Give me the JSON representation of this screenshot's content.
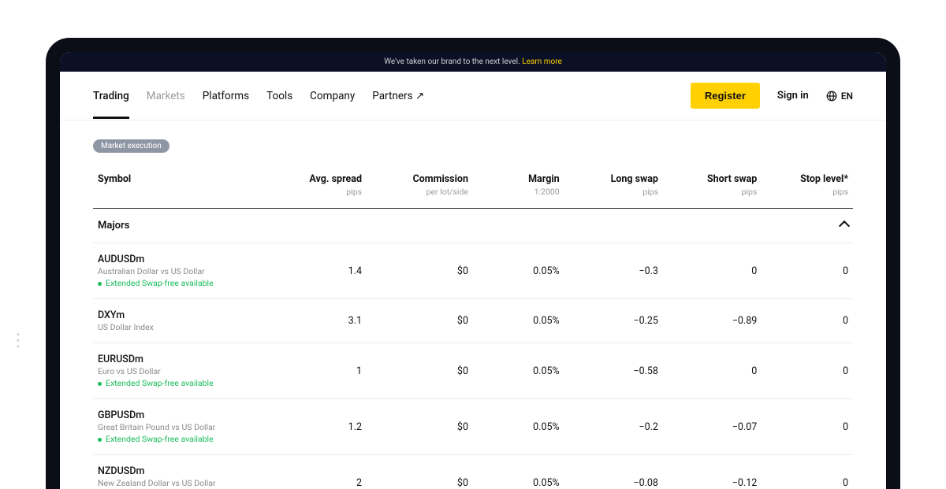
{
  "banner": {
    "text": "We've taken our brand to the next level.",
    "link_label": "Learn more"
  },
  "nav": {
    "items": [
      {
        "label": "Trading",
        "active": true
      },
      {
        "label": "Markets",
        "muted": true
      },
      {
        "label": "Platforms"
      },
      {
        "label": "Tools"
      },
      {
        "label": "Company"
      },
      {
        "label": "Partners ↗"
      }
    ],
    "register_label": "Register",
    "signin_label": "Sign in",
    "lang_label": "EN"
  },
  "pill": "Market execution",
  "columns": {
    "symbol": {
      "head": "Symbol",
      "sub": ""
    },
    "spread": {
      "head": "Avg. spread",
      "sub": "pips"
    },
    "commission": {
      "head": "Commission",
      "sub": "per lot/side"
    },
    "margin": {
      "head": "Margin",
      "sub": "1:2000"
    },
    "long_swap": {
      "head": "Long swap",
      "sub": "pips"
    },
    "short_swap": {
      "head": "Short swap",
      "sub": "pips"
    },
    "stop_level": {
      "head": "Stop level*",
      "sub": "pips"
    }
  },
  "group_label": "Majors",
  "swapfree_label": "Extended Swap-free available",
  "rows": [
    {
      "symbol": "AUDUSDm",
      "desc": "Australian Dollar vs US Dollar",
      "swapfree": true,
      "spread": "1.4",
      "commission": "$0",
      "margin": "0.05%",
      "long_swap": "−0.3",
      "short_swap": "0",
      "stop_level": "0"
    },
    {
      "symbol": "DXYm",
      "desc": "US Dollar Index",
      "swapfree": false,
      "spread": "3.1",
      "commission": "$0",
      "margin": "0.05%",
      "long_swap": "−0.25",
      "short_swap": "−0.89",
      "stop_level": "0"
    },
    {
      "symbol": "EURUSDm",
      "desc": "Euro vs US Dollar",
      "swapfree": true,
      "spread": "1",
      "commission": "$0",
      "margin": "0.05%",
      "long_swap": "−0.58",
      "short_swap": "0",
      "stop_level": "0"
    },
    {
      "symbol": "GBPUSDm",
      "desc": "Great Britain Pound vs US Dollar",
      "swapfree": true,
      "spread": "1.2",
      "commission": "$0",
      "margin": "0.05%",
      "long_swap": "−0.2",
      "short_swap": "−0.07",
      "stop_level": "0"
    },
    {
      "symbol": "NZDUSDm",
      "desc": "New Zealand Dollar vs US Dollar",
      "swapfree": true,
      "spread": "2",
      "commission": "$0",
      "margin": "0.05%",
      "long_swap": "−0.08",
      "short_swap": "−0.12",
      "stop_level": "0"
    }
  ],
  "colors": {
    "accent_yellow": "#ffd100",
    "banner_bg": "#0c1027",
    "swapfree_green": "#1abc5b",
    "pill_bg": "#8f96a3",
    "muted_text": "#9a9a9a",
    "border": "#ececec"
  }
}
